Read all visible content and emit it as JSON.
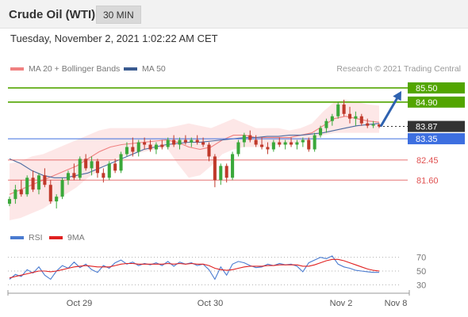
{
  "header": {
    "title": "Crude Oil (WTI)",
    "interval": "30 MIN"
  },
  "timestamp": "Tuesday, November 2, 2021 1:02:22 AM CET",
  "legend": {
    "ma20_label": "MA 20 + Bollinger Bands",
    "ma50_label": "MA 50",
    "credit": "Research © 2021 Trading Central",
    "rsi_label": "RSI",
    "rsi_ma_label": "9MA"
  },
  "colors": {
    "up": "#3aa83a",
    "down": "#c0392b",
    "ma20": "#f08080",
    "ma50": "#4a6aa0",
    "band": "#fde3e3",
    "resistance": "#52a500",
    "current": "#333333",
    "support_blue": "#3d6fe0",
    "support_red": "#e05050",
    "arrow": "#2e62b0",
    "rsi": "#4a7bd0",
    "rsi_ma": "#e02020"
  },
  "chart_data": [
    {
      "type": "candlestick",
      "title": "Crude Oil (WTI)",
      "timeframe": "30 MIN",
      "ylim": [
        79.9,
        86.0
      ],
      "grid": false,
      "x_ticks": [
        "Oct 29",
        "Oct 30",
        "Nov 2",
        "Nov 8"
      ],
      "levels": [
        {
          "value": 85.5,
          "label": "85.50",
          "kind": "resistance"
        },
        {
          "value": 84.9,
          "label": "84.90",
          "kind": "resistance"
        },
        {
          "value": 83.87,
          "label": "83.87",
          "kind": "current"
        },
        {
          "value": 83.35,
          "label": "83.35",
          "kind": "pivot"
        },
        {
          "value": 82.45,
          "label": "82.45",
          "kind": "support"
        },
        {
          "value": 81.6,
          "label": "81.60",
          "kind": "support"
        }
      ],
      "forecast_arrow": {
        "from": 83.87,
        "to": 85.5
      },
      "ma20": [
        81.0,
        81.2,
        81.4,
        81.6,
        81.8,
        82.0,
        82.2,
        82.5,
        82.8,
        83.0,
        83.1,
        83.15,
        83.2,
        83.25,
        83.3,
        83.2,
        83.0,
        82.9,
        83.0,
        83.3,
        83.5,
        83.5,
        83.4,
        83.4,
        83.4,
        83.4,
        83.5,
        83.6,
        83.9,
        84.2,
        84.3,
        84.2,
        84.1,
        84.05
      ],
      "ma50": [
        82.5,
        82.3,
        82.0,
        81.8,
        81.7,
        81.7,
        81.8,
        81.9,
        82.1,
        82.3,
        82.5,
        82.7,
        82.9,
        83.0,
        83.1,
        83.15,
        83.2,
        83.2,
        83.25,
        83.3,
        83.35,
        83.4,
        83.4,
        83.45,
        83.45,
        83.5,
        83.5,
        83.55,
        83.6,
        83.7,
        83.8,
        83.9,
        83.95,
        84.0
      ],
      "bb_upper": [
        82.3,
        82.4,
        82.6,
        82.7,
        82.9,
        83.1,
        83.3,
        83.5,
        83.7,
        83.8,
        83.8,
        83.8,
        83.8,
        83.8,
        83.8,
        83.9,
        84.0,
        83.9,
        83.8,
        84.0,
        84.2,
        84.0,
        83.8,
        83.8,
        83.8,
        83.7,
        83.8,
        84.0,
        84.5,
        84.9,
        85.0,
        84.9,
        84.8,
        84.75
      ],
      "bb_lower": [
        79.9,
        80.0,
        80.2,
        80.4,
        80.7,
        81.0,
        81.3,
        81.7,
        82.0,
        82.4,
        82.6,
        82.7,
        82.8,
        82.9,
        83.0,
        82.3,
        81.7,
        81.8,
        82.2,
        82.7,
        82.9,
        83.0,
        83.0,
        83.0,
        83.1,
        83.1,
        83.2,
        83.3,
        83.5,
        83.6,
        83.6,
        83.6,
        83.6,
        83.6
      ],
      "candles": [
        {
          "o": 80.6,
          "h": 80.9,
          "l": 80.5,
          "c": 80.8
        },
        {
          "o": 80.8,
          "h": 81.4,
          "l": 80.6,
          "c": 81.2
        },
        {
          "o": 81.2,
          "h": 81.6,
          "l": 80.9,
          "c": 81.0
        },
        {
          "o": 81.0,
          "h": 81.8,
          "l": 80.9,
          "c": 81.7
        },
        {
          "o": 81.7,
          "h": 82.0,
          "l": 81.1,
          "c": 81.2
        },
        {
          "o": 81.2,
          "h": 81.9,
          "l": 81.0,
          "c": 81.8
        },
        {
          "o": 81.8,
          "h": 82.1,
          "l": 81.3,
          "c": 81.4
        },
        {
          "o": 81.4,
          "h": 81.6,
          "l": 80.6,
          "c": 80.7
        },
        {
          "o": 80.7,
          "h": 81.0,
          "l": 80.4,
          "c": 80.9
        },
        {
          "o": 80.9,
          "h": 81.7,
          "l": 80.8,
          "c": 81.6
        },
        {
          "o": 81.6,
          "h": 82.0,
          "l": 81.4,
          "c": 81.9
        },
        {
          "o": 81.9,
          "h": 82.3,
          "l": 81.6,
          "c": 81.7
        },
        {
          "o": 81.7,
          "h": 82.6,
          "l": 81.6,
          "c": 82.5
        },
        {
          "o": 82.5,
          "h": 82.7,
          "l": 82.0,
          "c": 82.1
        },
        {
          "o": 82.1,
          "h": 82.6,
          "l": 81.8,
          "c": 82.4
        },
        {
          "o": 82.4,
          "h": 82.5,
          "l": 81.7,
          "c": 81.9
        },
        {
          "o": 81.9,
          "h": 82.1,
          "l": 81.5,
          "c": 81.7
        },
        {
          "o": 81.7,
          "h": 82.4,
          "l": 81.6,
          "c": 82.3
        },
        {
          "o": 82.3,
          "h": 82.5,
          "l": 81.9,
          "c": 82.0
        },
        {
          "o": 82.0,
          "h": 82.8,
          "l": 81.9,
          "c": 82.7
        },
        {
          "o": 82.7,
          "h": 83.2,
          "l": 82.6,
          "c": 83.0
        },
        {
          "o": 83.0,
          "h": 83.4,
          "l": 82.6,
          "c": 82.8
        },
        {
          "o": 82.8,
          "h": 83.3,
          "l": 82.6,
          "c": 83.2
        },
        {
          "o": 83.2,
          "h": 83.4,
          "l": 82.9,
          "c": 83.1
        },
        {
          "o": 83.1,
          "h": 83.3,
          "l": 82.8,
          "c": 82.9
        },
        {
          "o": 82.9,
          "h": 83.2,
          "l": 82.7,
          "c": 83.1
        },
        {
          "o": 83.1,
          "h": 83.3,
          "l": 82.9,
          "c": 83.0
        },
        {
          "o": 83.0,
          "h": 83.4,
          "l": 82.9,
          "c": 83.3
        },
        {
          "o": 83.3,
          "h": 83.5,
          "l": 83.0,
          "c": 83.1
        },
        {
          "o": 83.1,
          "h": 83.4,
          "l": 82.9,
          "c": 83.3
        },
        {
          "o": 83.3,
          "h": 83.5,
          "l": 83.1,
          "c": 83.2
        },
        {
          "o": 83.2,
          "h": 83.4,
          "l": 83.0,
          "c": 83.3
        },
        {
          "o": 83.3,
          "h": 83.5,
          "l": 83.1,
          "c": 83.2
        },
        {
          "o": 83.2,
          "h": 83.4,
          "l": 83.0,
          "c": 83.1
        },
        {
          "o": 83.1,
          "h": 83.2,
          "l": 82.4,
          "c": 82.6
        },
        {
          "o": 82.6,
          "h": 82.7,
          "l": 81.3,
          "c": 81.6
        },
        {
          "o": 81.6,
          "h": 82.3,
          "l": 81.4,
          "c": 82.2
        },
        {
          "o": 82.2,
          "h": 82.3,
          "l": 81.5,
          "c": 81.7
        },
        {
          "o": 81.7,
          "h": 82.8,
          "l": 81.6,
          "c": 82.7
        },
        {
          "o": 82.7,
          "h": 83.3,
          "l": 82.6,
          "c": 83.2
        },
        {
          "o": 83.2,
          "h": 83.6,
          "l": 83.0,
          "c": 83.5
        },
        {
          "o": 83.5,
          "h": 83.7,
          "l": 83.2,
          "c": 83.3
        },
        {
          "o": 83.3,
          "h": 83.5,
          "l": 83.0,
          "c": 83.1
        },
        {
          "o": 83.1,
          "h": 83.4,
          "l": 82.9,
          "c": 83.0
        },
        {
          "o": 83.0,
          "h": 83.2,
          "l": 82.7,
          "c": 82.9
        },
        {
          "o": 82.9,
          "h": 83.3,
          "l": 82.8,
          "c": 83.2
        },
        {
          "o": 83.2,
          "h": 83.4,
          "l": 83.0,
          "c": 83.1
        },
        {
          "o": 83.1,
          "h": 83.3,
          "l": 82.9,
          "c": 83.2
        },
        {
          "o": 83.2,
          "h": 83.4,
          "l": 83.0,
          "c": 83.1
        },
        {
          "o": 83.1,
          "h": 83.3,
          "l": 82.9,
          "c": 83.2
        },
        {
          "o": 83.2,
          "h": 83.4,
          "l": 83.0,
          "c": 83.3
        },
        {
          "o": 83.3,
          "h": 83.4,
          "l": 82.8,
          "c": 82.9
        },
        {
          "o": 82.9,
          "h": 83.6,
          "l": 82.8,
          "c": 83.5
        },
        {
          "o": 83.5,
          "h": 83.9,
          "l": 83.4,
          "c": 83.8
        },
        {
          "o": 83.8,
          "h": 84.2,
          "l": 83.6,
          "c": 84.1
        },
        {
          "o": 84.1,
          "h": 84.4,
          "l": 83.9,
          "c": 84.3
        },
        {
          "o": 84.3,
          "h": 84.9,
          "l": 84.2,
          "c": 84.8
        },
        {
          "o": 84.8,
          "h": 85.0,
          "l": 84.3,
          "c": 84.4
        },
        {
          "o": 84.4,
          "h": 84.7,
          "l": 84.0,
          "c": 84.2
        },
        {
          "o": 84.2,
          "h": 84.5,
          "l": 83.9,
          "c": 84.3
        },
        {
          "o": 84.3,
          "h": 84.4,
          "l": 83.9,
          "c": 84.0
        },
        {
          "o": 84.0,
          "h": 84.2,
          "l": 83.8,
          "c": 83.9
        },
        {
          "o": 83.9,
          "h": 84.1,
          "l": 83.8,
          "c": 83.95
        },
        {
          "o": 83.95,
          "h": 84.0,
          "l": 83.8,
          "c": 83.87
        }
      ]
    },
    {
      "type": "line",
      "title": "RSI",
      "ylim": [
        20,
        80
      ],
      "y_ticks": [
        70,
        50,
        30
      ],
      "series": [
        {
          "name": "RSI",
          "values": [
            38,
            45,
            42,
            52,
            47,
            56,
            44,
            38,
            50,
            58,
            54,
            63,
            55,
            60,
            52,
            48,
            58,
            54,
            62,
            66,
            60,
            63,
            58,
            61,
            59,
            62,
            58,
            64,
            57,
            63,
            60,
            62,
            58,
            60,
            52,
            38,
            56,
            44,
            60,
            64,
            62,
            58,
            55,
            56,
            60,
            58,
            61,
            59,
            60,
            57,
            49,
            62,
            66,
            70,
            68,
            72,
            60,
            56,
            54,
            51,
            50,
            49,
            48,
            48
          ]
        },
        {
          "name": "9MA",
          "values": [
            40,
            42,
            44,
            46,
            48,
            50,
            50,
            49,
            50,
            52,
            54,
            56,
            57,
            58,
            57,
            56,
            56,
            56,
            58,
            60,
            61,
            61,
            60,
            60,
            60,
            60,
            60,
            61,
            60,
            61,
            60,
            61,
            60,
            60,
            58,
            54,
            52,
            51,
            52,
            54,
            56,
            57,
            57,
            57,
            58,
            58,
            59,
            59,
            59,
            59,
            57,
            57,
            59,
            62,
            65,
            67,
            67,
            65,
            62,
            59,
            56,
            53,
            51,
            50
          ]
        }
      ]
    }
  ]
}
